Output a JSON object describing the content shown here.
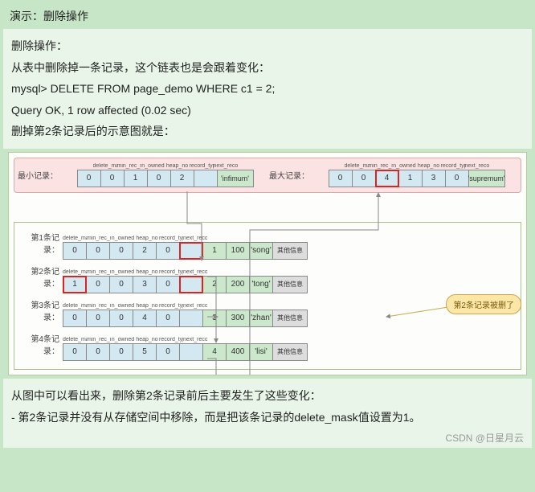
{
  "header": {
    "title": "演示：删除操作"
  },
  "intro": {
    "line1": "删除操作：",
    "line2": "从表中删除掉一条记录，这个链表也是会跟着变化：",
    "sql": "mysql> DELETE FROM page_demo WHERE c1 = 2;",
    "result": "Query OK, 1 row affected (0.02 sec)",
    "line3": "删掉第2条记录后的示意图就是："
  },
  "header_cols": [
    "delete_mask",
    "min_rec_mask",
    "n_owned",
    "heap_no",
    "record_type",
    "next_record"
  ],
  "top": {
    "min_label": "最小记录：",
    "min_vals": [
      "0",
      "0",
      "1",
      "0",
      "2",
      ""
    ],
    "min_tail": "'infimum'",
    "max_label": "最大记录：",
    "max_vals": [
      "0",
      "0",
      "4",
      "1",
      "3",
      "0"
    ],
    "max_tail": "'supremum'",
    "max_highlight_idx": 2,
    "colors": {
      "bg": "#fbe3e3",
      "border": "#d9a9a9"
    }
  },
  "rows": [
    {
      "label": "第1条记录：",
      "vals": [
        "0",
        "0",
        "0",
        "2",
        "0",
        ""
      ],
      "hl": [
        5
      ],
      "extra": [
        "1",
        "100",
        "'song'"
      ],
      "gray": "其他信息"
    },
    {
      "label": "第2条记录：",
      "vals": [
        "1",
        "0",
        "0",
        "3",
        "0",
        ""
      ],
      "hl": [
        0,
        5
      ],
      "extra": [
        "2",
        "200",
        "'tong'"
      ],
      "gray": "其他信息"
    },
    {
      "label": "第3条记录：",
      "vals": [
        "0",
        "0",
        "0",
        "4",
        "0",
        ""
      ],
      "hl": [],
      "extra": [
        "3",
        "300",
        "'zhan'"
      ],
      "gray": "其他信息"
    },
    {
      "label": "第4条记录：",
      "vals": [
        "0",
        "0",
        "0",
        "5",
        "0",
        ""
      ],
      "hl": [],
      "extra": [
        "4",
        "400",
        "'lisi'"
      ],
      "gray": "其他信息"
    }
  ],
  "callout": "第2条记录被删了",
  "outro": {
    "line1": "从图中可以看出来，删除第2条记录前后主要发生了这些变化：",
    "line2": "- 第2条记录并没有从存储空间中移除，而是把该条记录的delete_mask值设置为1。"
  },
  "watermark": "CSDN @日星月云",
  "style": {
    "page_bg": "#c7e5c7",
    "panel_bg": "#e8f5e8",
    "diagram_bg": "#fdfdfb",
    "cell_blue": "#d4e8f2",
    "cell_green": "#cce8cc",
    "cell_gray": "#dddddd",
    "highlight_border": "#d22",
    "arrow_color": "#888888",
    "callout_bg": "#fce7a8",
    "callout_border": "#c9a84a"
  }
}
